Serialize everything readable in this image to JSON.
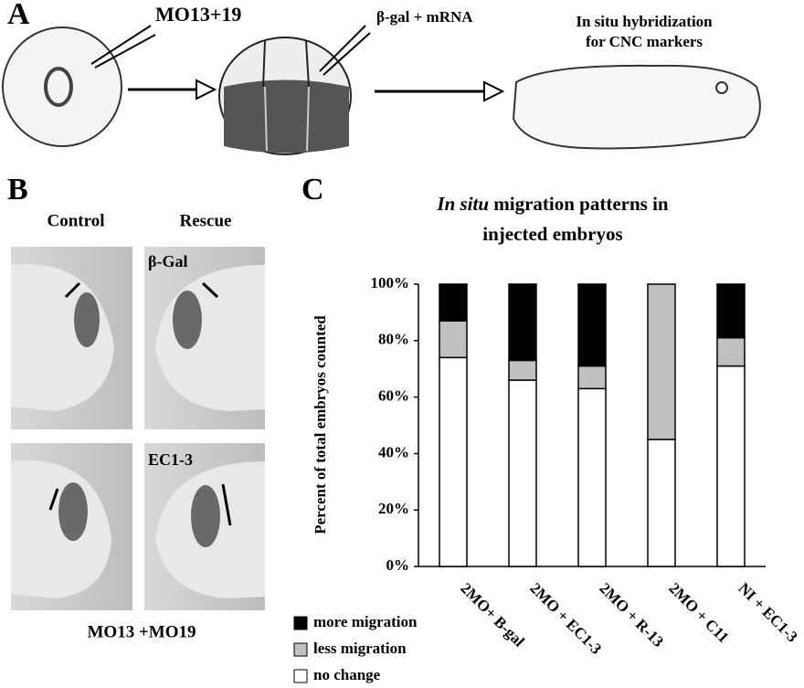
{
  "panels": {
    "a": {
      "label": "A",
      "morpholino": "MO13+19",
      "injection": "β-gal + mRNA",
      "assay": [
        "In situ hybridization",
        "for CNC markers"
      ]
    },
    "b": {
      "label": "B",
      "columns": [
        "Control",
        "Rescue"
      ],
      "rows": [
        "β-Gal",
        "EC1-3"
      ],
      "caption": "MO13 +MO19"
    },
    "c": {
      "label": "C"
    }
  },
  "chart_data": {
    "type": "stacked-bar",
    "title": [
      "In situ",
      "migration patterns in",
      "injected embryos"
    ],
    "ylabel": "Percent of total embryos counted",
    "categories": [
      "2MO+ B-gal",
      "2MO + EC1-3",
      "2MO + R-13",
      "2MO + C11",
      "NI + EC1-3"
    ],
    "series": [
      {
        "name": "more migration",
        "color": "#000000",
        "values": [
          13,
          27,
          29,
          0,
          19
        ]
      },
      {
        "name": "less migration",
        "color": "#c0c0c0",
        "values": [
          13,
          7,
          8,
          55,
          10
        ]
      },
      {
        "name": "no change",
        "color": "#ffffff",
        "values": [
          74,
          66,
          63,
          45,
          71
        ]
      }
    ],
    "ylim": [
      0,
      100
    ],
    "yticks": [
      {
        "value": 0,
        "label": "0%"
      },
      {
        "value": 20,
        "label": "20%"
      },
      {
        "value": 40,
        "label": "40%"
      },
      {
        "value": 60,
        "label": "60%"
      },
      {
        "value": 80,
        "label": "80%"
      },
      {
        "value": 100,
        "label": "100%"
      }
    ]
  }
}
